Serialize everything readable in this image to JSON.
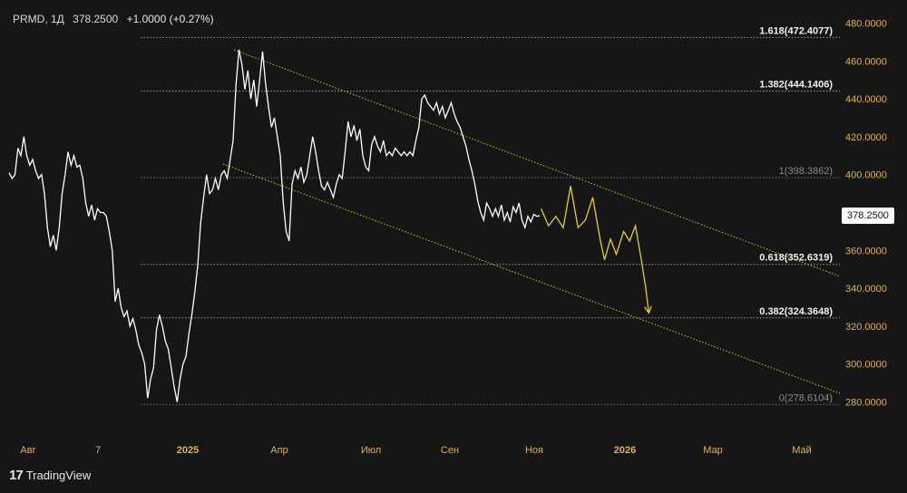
{
  "header": {
    "symbol": "PRMD, 1Д",
    "price": "378.2500",
    "change": "+1.0000 (+0.27%)"
  },
  "brand": {
    "name": "TradingView"
  },
  "colors": {
    "background": "#161616",
    "price_line": "#ffffff",
    "forecast": "#e8d020",
    "channel": "#d4c020",
    "axis_text": "#e0b24a"
  },
  "chart_data": {
    "type": "line",
    "last_price_label": "378.2500",
    "ylim": [
      270,
      488
    ],
    "y_ticks": [
      "280.0000",
      "300.0000",
      "320.0000",
      "340.0000",
      "360.0000",
      "380.0000",
      "400.0000",
      "420.0000",
      "440.0000",
      "460.0000",
      "480.0000"
    ],
    "x_ticks": [
      "Авг",
      "7",
      "2025",
      "Апр",
      "Июл",
      "Сен",
      "Ноя",
      "2026",
      "Мар",
      "Май"
    ],
    "fib_levels": [
      {
        "label": "1.618(472.4077)",
        "value": 472.4077
      },
      {
        "label": "1.382(444.1406)",
        "value": 444.1406
      },
      {
        "label": "1(398.3862)",
        "value": 398.3862
      },
      {
        "label": "0.618(352.6319)",
        "value": 352.6319
      },
      {
        "label": "0.382(324.3648)",
        "value": 324.3648
      },
      {
        "label": "0(278.6104)",
        "value": 278.6104
      }
    ],
    "series": [
      {
        "values": [
          [
            0,
            401
          ],
          [
            2,
            398
          ],
          [
            4,
            400
          ],
          [
            6,
            414
          ],
          [
            8,
            410
          ],
          [
            10,
            420
          ],
          [
            12,
            410
          ],
          [
            14,
            405
          ],
          [
            16,
            408
          ],
          [
            18,
            402
          ],
          [
            20,
            398
          ],
          [
            22,
            400
          ],
          [
            24,
            390
          ],
          [
            26,
            372
          ],
          [
            28,
            362
          ],
          [
            30,
            368
          ],
          [
            32,
            360
          ],
          [
            34,
            372
          ],
          [
            36,
            390
          ],
          [
            38,
            400
          ],
          [
            40,
            412
          ],
          [
            42,
            405
          ],
          [
            44,
            410
          ],
          [
            46,
            404
          ],
          [
            48,
            405
          ],
          [
            50,
            398
          ],
          [
            52,
            385
          ],
          [
            54,
            378
          ],
          [
            56,
            384
          ],
          [
            58,
            376
          ],
          [
            60,
            382
          ],
          [
            62,
            380
          ],
          [
            64,
            380
          ],
          [
            66,
            378
          ],
          [
            68,
            370
          ],
          [
            70,
            360
          ],
          [
            72,
            333
          ],
          [
            74,
            340
          ],
          [
            76,
            330
          ],
          [
            78,
            325
          ],
          [
            80,
            328
          ],
          [
            82,
            320
          ],
          [
            84,
            324
          ],
          [
            86,
            318
          ],
          [
            88,
            310
          ],
          [
            90,
            306
          ],
          [
            92,
            300
          ],
          [
            94,
            282
          ],
          [
            96,
            292
          ],
          [
            98,
            298
          ],
          [
            100,
            318
          ],
          [
            102,
            326
          ],
          [
            104,
            320
          ],
          [
            106,
            312
          ],
          [
            108,
            308
          ],
          [
            110,
            298
          ],
          [
            112,
            288
          ],
          [
            114,
            280
          ],
          [
            116,
            292
          ],
          [
            118,
            300
          ],
          [
            120,
            304
          ],
          [
            122,
            316
          ],
          [
            124,
            326
          ],
          [
            126,
            338
          ],
          [
            128,
            352
          ],
          [
            130,
            375
          ],
          [
            132,
            388
          ],
          [
            134,
            400
          ],
          [
            136,
            390
          ],
          [
            138,
            392
          ],
          [
            140,
            398
          ],
          [
            142,
            392
          ],
          [
            144,
            400
          ],
          [
            146,
            402
          ],
          [
            148,
            398
          ],
          [
            150,
            408
          ],
          [
            152,
            418
          ],
          [
            154,
            448
          ],
          [
            156,
            466
          ],
          [
            158,
            458
          ],
          [
            160,
            445
          ],
          [
            162,
            455
          ],
          [
            164,
            440
          ],
          [
            166,
            450
          ],
          [
            168,
            436
          ],
          [
            170,
            450
          ],
          [
            172,
            465
          ],
          [
            174,
            448
          ],
          [
            176,
            436
          ],
          [
            178,
            425
          ],
          [
            180,
            430
          ],
          [
            182,
            420
          ],
          [
            184,
            410
          ],
          [
            186,
            385
          ],
          [
            188,
            370
          ],
          [
            190,
            365
          ],
          [
            192,
            395
          ],
          [
            194,
            402
          ],
          [
            196,
            398
          ],
          [
            198,
            404
          ],
          [
            200,
            396
          ],
          [
            202,
            400
          ],
          [
            204,
            410
          ],
          [
            206,
            420
          ],
          [
            208,
            412
          ],
          [
            210,
            402
          ],
          [
            212,
            394
          ],
          [
            214,
            392
          ],
          [
            216,
            396
          ],
          [
            218,
            392
          ],
          [
            220,
            388
          ],
          [
            222,
            395
          ],
          [
            224,
            400
          ],
          [
            226,
            398
          ],
          [
            228,
            412
          ],
          [
            230,
            428
          ],
          [
            232,
            420
          ],
          [
            234,
            426
          ],
          [
            236,
            418
          ],
          [
            238,
            424
          ],
          [
            240,
            410
          ],
          [
            242,
            404
          ],
          [
            244,
            402
          ],
          [
            246,
            416
          ],
          [
            248,
            420
          ],
          [
            250,
            415
          ],
          [
            252,
            412
          ],
          [
            254,
            418
          ],
          [
            256,
            410
          ],
          [
            258,
            412
          ],
          [
            260,
            410
          ],
          [
            262,
            414
          ],
          [
            264,
            412
          ],
          [
            266,
            410
          ],
          [
            268,
            412
          ],
          [
            270,
            410
          ],
          [
            272,
            412
          ],
          [
            274,
            410
          ],
          [
            276,
            418
          ],
          [
            278,
            425
          ],
          [
            280,
            440
          ],
          [
            282,
            442
          ],
          [
            284,
            438
          ],
          [
            286,
            436
          ],
          [
            288,
            434
          ],
          [
            290,
            438
          ],
          [
            292,
            432
          ],
          [
            294,
            436
          ],
          [
            296,
            430
          ],
          [
            298,
            434
          ],
          [
            300,
            438
          ],
          [
            302,
            432
          ],
          [
            304,
            428
          ],
          [
            306,
            425
          ],
          [
            308,
            420
          ],
          [
            310,
            415
          ],
          [
            312,
            408
          ],
          [
            314,
            402
          ],
          [
            316,
            395
          ],
          [
            318,
            386
          ],
          [
            320,
            380
          ],
          [
            322,
            376
          ],
          [
            324,
            385
          ],
          [
            326,
            382
          ],
          [
            328,
            378
          ],
          [
            330,
            382
          ],
          [
            332,
            378
          ],
          [
            334,
            384
          ],
          [
            336,
            376
          ],
          [
            338,
            380
          ],
          [
            340,
            375
          ],
          [
            342,
            383
          ],
          [
            344,
            380
          ],
          [
            346,
            385
          ],
          [
            348,
            376
          ],
          [
            350,
            372
          ],
          [
            352,
            378
          ],
          [
            354,
            375
          ],
          [
            356,
            379
          ],
          [
            358,
            378
          ],
          [
            360,
            378.25
          ]
        ]
      },
      {
        "values": [
          [
            361,
            382
          ],
          [
            366,
            373
          ],
          [
            371,
            378
          ],
          [
            376,
            372
          ],
          [
            381,
            394
          ],
          [
            386,
            372
          ],
          [
            391,
            376
          ],
          [
            396,
            388
          ],
          [
            401,
            366
          ],
          [
            404,
            355
          ],
          [
            408,
            366
          ],
          [
            412,
            358
          ],
          [
            417,
            370
          ],
          [
            421,
            365
          ],
          [
            425,
            373
          ],
          [
            429,
            355
          ],
          [
            432,
            340
          ],
          [
            434,
            327
          ]
        ]
      }
    ]
  }
}
